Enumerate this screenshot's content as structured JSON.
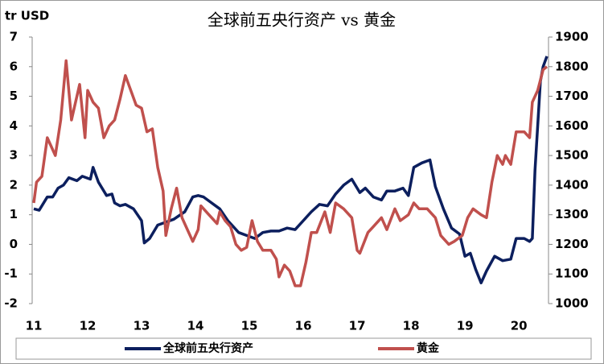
{
  "chart_data": {
    "type": "line",
    "title": "全球前五央行资产 vs 黄金",
    "y_label": "tr USD",
    "xlim": [
      10.97,
      20.55
    ],
    "xticks": [
      11,
      12,
      13,
      14,
      15,
      16,
      17,
      18,
      19,
      20
    ],
    "ylim": [
      -2,
      7
    ],
    "yticks": [
      -2,
      -1,
      0,
      1,
      2,
      3,
      4,
      5,
      6,
      7
    ],
    "y2lim": [
      1000,
      1900
    ],
    "y2ticks": [
      1000,
      1100,
      1200,
      1300,
      1400,
      1500,
      1600,
      1700,
      1800,
      1900
    ],
    "legend": "bottom",
    "series": [
      {
        "name": "全球前五央行资产",
        "color": "#0c1f5e",
        "x": [
          11.0,
          11.1,
          11.25,
          11.35,
          11.45,
          11.55,
          11.65,
          11.8,
          11.9,
          12.05,
          12.1,
          12.2,
          12.35,
          12.45,
          12.5,
          12.6,
          12.7,
          12.85,
          13.0,
          13.05,
          13.15,
          13.3,
          13.45,
          13.6,
          13.8,
          13.95,
          14.05,
          14.15,
          14.3,
          14.45,
          14.6,
          14.8,
          14.95,
          15.1,
          15.25,
          15.4,
          15.55,
          15.7,
          15.85,
          16.0,
          16.15,
          16.3,
          16.45,
          16.6,
          16.75,
          16.9,
          17.05,
          17.15,
          17.3,
          17.45,
          17.55,
          17.7,
          17.85,
          17.95,
          18.05,
          18.2,
          18.35,
          18.45,
          18.6,
          18.75,
          18.9,
          19.0,
          19.1,
          19.2,
          19.3,
          19.4,
          19.55,
          19.7,
          19.85,
          19.95,
          20.1,
          20.2,
          20.25,
          20.3,
          20.4,
          20.45,
          20.52
        ],
        "values": [
          1.2,
          1.15,
          1.6,
          1.6,
          1.9,
          2.0,
          2.25,
          2.15,
          2.3,
          2.2,
          2.6,
          2.1,
          1.65,
          1.7,
          1.4,
          1.3,
          1.35,
          1.2,
          0.8,
          0.05,
          0.2,
          0.65,
          0.75,
          0.85,
          1.1,
          1.6,
          1.65,
          1.6,
          1.4,
          1.2,
          0.8,
          0.4,
          0.3,
          0.2,
          0.4,
          0.45,
          0.45,
          0.55,
          0.5,
          0.8,
          1.1,
          1.35,
          1.3,
          1.7,
          2.0,
          2.2,
          1.75,
          1.9,
          1.6,
          1.5,
          1.8,
          1.8,
          1.9,
          1.65,
          2.6,
          2.75,
          2.85,
          1.95,
          1.2,
          0.55,
          0.35,
          -0.4,
          -0.3,
          -0.85,
          -1.3,
          -0.9,
          -0.4,
          -0.55,
          -0.5,
          0.2,
          0.2,
          0.1,
          0.2,
          2.5,
          5.5,
          6.0,
          6.35
        ]
      },
      {
        "name": "黄金",
        "color": "#c0504d",
        "axis": "y2",
        "x": [
          11.0,
          11.05,
          11.15,
          11.25,
          11.4,
          11.5,
          11.6,
          11.7,
          11.8,
          11.85,
          11.95,
          12.0,
          12.1,
          12.2,
          12.3,
          12.4,
          12.5,
          12.6,
          12.7,
          12.8,
          12.9,
          13.0,
          13.1,
          13.2,
          13.3,
          13.4,
          13.45,
          13.55,
          13.65,
          13.75,
          13.85,
          13.95,
          14.05,
          14.1,
          14.25,
          14.4,
          14.45,
          14.55,
          14.65,
          14.75,
          14.85,
          14.95,
          15.05,
          15.15,
          15.25,
          15.4,
          15.5,
          15.55,
          15.65,
          15.75,
          15.85,
          15.95,
          16.05,
          16.15,
          16.25,
          16.4,
          16.5,
          16.6,
          16.75,
          16.9,
          17.0,
          17.05,
          17.2,
          17.3,
          17.45,
          17.55,
          17.7,
          17.8,
          17.95,
          18.05,
          18.15,
          18.3,
          18.45,
          18.55,
          18.7,
          18.8,
          18.95,
          19.05,
          19.15,
          19.3,
          19.4,
          19.5,
          19.6,
          19.7,
          19.75,
          19.85,
          19.95,
          20.1,
          20.2,
          20.25,
          20.35,
          20.45,
          20.52
        ],
        "values": [
          1340,
          1410,
          1430,
          1560,
          1500,
          1620,
          1820,
          1620,
          1700,
          1740,
          1560,
          1720,
          1680,
          1660,
          1560,
          1600,
          1620,
          1690,
          1770,
          1720,
          1670,
          1660,
          1580,
          1590,
          1460,
          1380,
          1230,
          1320,
          1390,
          1290,
          1250,
          1210,
          1250,
          1330,
          1300,
          1270,
          1310,
          1280,
          1260,
          1200,
          1180,
          1190,
          1280,
          1210,
          1180,
          1180,
          1150,
          1090,
          1130,
          1110,
          1060,
          1060,
          1140,
          1240,
          1240,
          1310,
          1240,
          1340,
          1320,
          1290,
          1180,
          1170,
          1240,
          1260,
          1290,
          1250,
          1320,
          1280,
          1300,
          1340,
          1320,
          1320,
          1290,
          1230,
          1200,
          1210,
          1230,
          1290,
          1320,
          1300,
          1290,
          1410,
          1500,
          1470,
          1500,
          1470,
          1580,
          1580,
          1560,
          1680,
          1720,
          1790,
          1800
        ]
      }
    ]
  }
}
